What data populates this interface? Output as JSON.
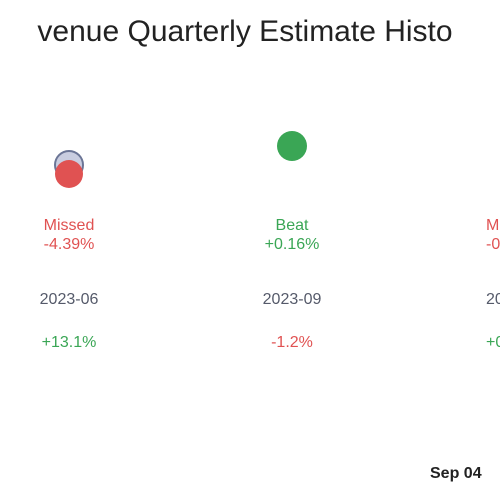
{
  "title": "venue Quarterly Estimate Histo",
  "columns": [
    {
      "status": "Missed",
      "surprise": "-4.39%",
      "period": "2023-06",
      "change": "+13.1%"
    },
    {
      "status": "Beat",
      "surprise": "+0.16%",
      "period": "2023-09",
      "change": "-1.2%"
    },
    {
      "status": "M",
      "surprise": "-0",
      "period": "20",
      "change": "+0"
    }
  ],
  "footer": "Sep 04"
}
